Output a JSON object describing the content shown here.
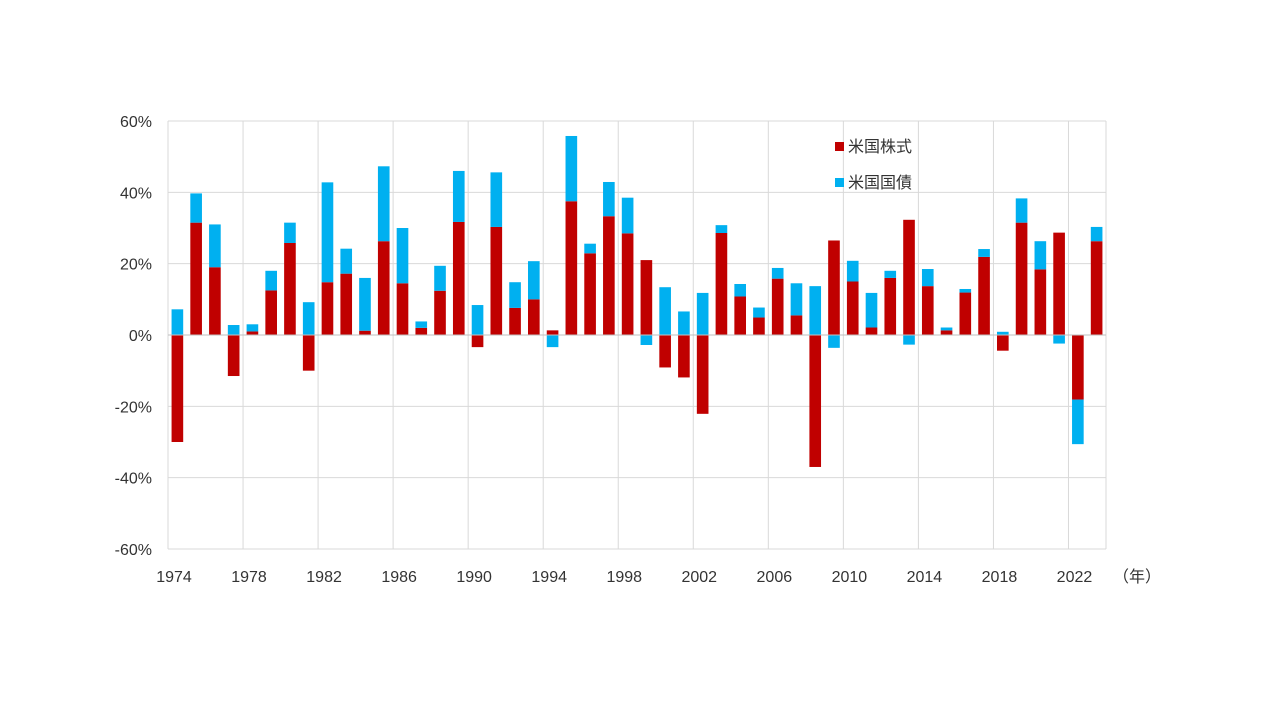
{
  "chart_data": {
    "type": "bar",
    "stacked": true,
    "title": "",
    "xlabel": "",
    "ylabel": "",
    "x_unit_label": "（年）",
    "ylim": [
      -0.6,
      0.6
    ],
    "y_ticks": [
      0.6,
      0.4,
      0.2,
      0,
      -0.2,
      -0.4,
      -0.6
    ],
    "y_tick_labels": [
      "60%",
      "40%",
      "20%",
      "0%",
      "-20%",
      "-40%",
      "-60%"
    ],
    "x_ticks": [
      1974,
      1978,
      1982,
      1986,
      1990,
      1994,
      1998,
      2002,
      2006,
      2010,
      2014,
      2018,
      2022
    ],
    "grid": true,
    "legend_position": "top-right",
    "categories": [
      1974,
      1975,
      1976,
      1977,
      1978,
      1979,
      1980,
      1981,
      1982,
      1983,
      1984,
      1985,
      1986,
      1987,
      1988,
      1989,
      1990,
      1991,
      1992,
      1993,
      1994,
      1995,
      1996,
      1997,
      1998,
      1999,
      2000,
      2001,
      2002,
      2003,
      2004,
      2005,
      2006,
      2007,
      2008,
      2009,
      2010,
      2011,
      2012,
      2013,
      2014,
      2015,
      2016,
      2017,
      2018,
      2019,
      2020,
      2021,
      2022,
      2023
    ],
    "series": [
      {
        "name": "米国株式",
        "color": "#c00000",
        "values": [
          -0.3,
          0.315,
          0.19,
          -0.115,
          0.01,
          0.125,
          0.258,
          -0.1,
          0.148,
          0.172,
          0.012,
          0.263,
          0.145,
          0.02,
          0.124,
          0.317,
          -0.034,
          0.303,
          0.076,
          0.1,
          0.013,
          0.375,
          0.229,
          0.333,
          0.285,
          0.21,
          -0.091,
          -0.119,
          -0.221,
          0.286,
          0.108,
          0.049,
          0.158,
          0.055,
          -0.37,
          0.265,
          0.15,
          0.021,
          0.16,
          0.323,
          0.137,
          0.013,
          0.119,
          0.219,
          -0.044,
          0.315,
          0.184,
          0.287,
          -0.181,
          0.263
        ]
      },
      {
        "name": "米国国債",
        "color": "#00b0f0",
        "values": [
          0.072,
          0.082,
          0.12,
          0.028,
          0.02,
          0.055,
          0.057,
          0.092,
          0.28,
          0.07,
          0.148,
          0.21,
          0.155,
          0.018,
          0.07,
          0.143,
          0.084,
          0.153,
          0.072,
          0.107,
          -0.034,
          0.183,
          0.027,
          0.096,
          0.1,
          -0.028,
          0.134,
          0.066,
          0.118,
          0.022,
          0.035,
          0.028,
          0.03,
          0.09,
          0.137,
          -0.036,
          0.058,
          0.097,
          0.02,
          -0.027,
          0.048,
          0.008,
          0.01,
          0.022,
          0.009,
          0.068,
          0.079,
          -0.024,
          -0.125,
          0.04
        ]
      }
    ]
  }
}
